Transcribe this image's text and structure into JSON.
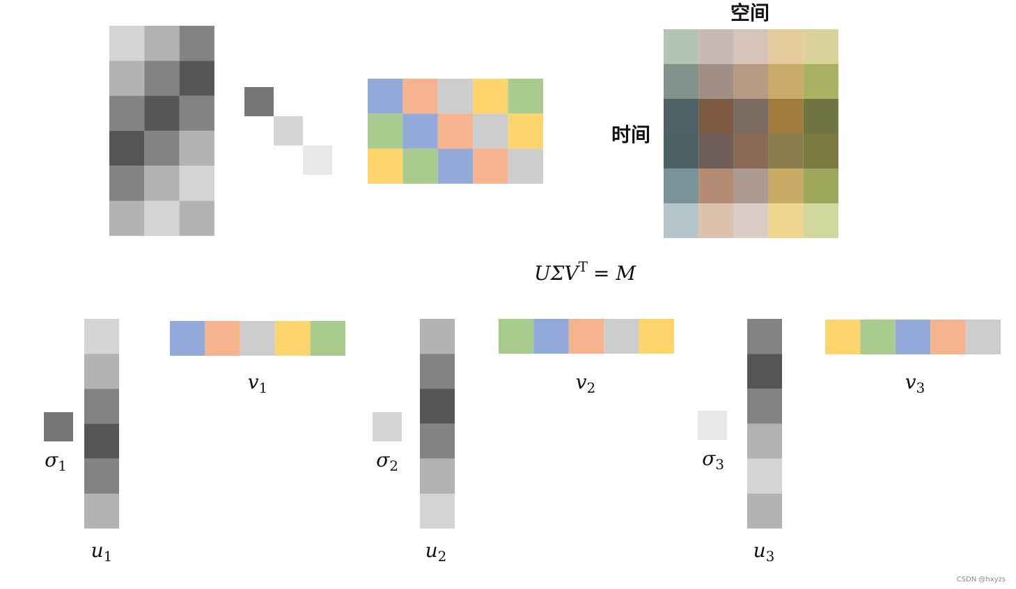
{
  "header": {
    "space": "空间",
    "time": "时间"
  },
  "equation": {
    "base": "UΣV",
    "sup": "T",
    "rhs": "= M"
  },
  "components": [
    {
      "sigma": {
        "symbol": "σ",
        "index": "1"
      },
      "u": {
        "symbol": "u",
        "index": "1"
      },
      "v": {
        "symbol": "v",
        "index": "1"
      }
    },
    {
      "sigma": {
        "symbol": "σ",
        "index": "2"
      },
      "u": {
        "symbol": "u",
        "index": "2"
      },
      "v": {
        "symbol": "v",
        "index": "2"
      }
    },
    {
      "sigma": {
        "symbol": "σ",
        "index": "3"
      },
      "u": {
        "symbol": "u",
        "index": "3"
      },
      "v": {
        "symbol": "v",
        "index": "3"
      }
    }
  ],
  "watermark": "CSDN @hxyzs"
}
